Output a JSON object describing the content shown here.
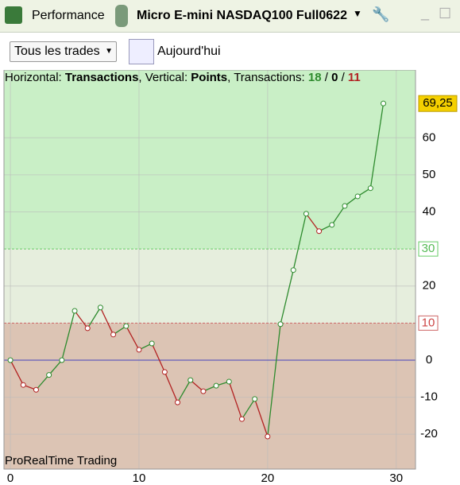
{
  "toolbar": {
    "left_label": "Performance",
    "instrument": "Micro E-mini NASDAQ100 Full0622"
  },
  "filters": {
    "trades": "Tous les trades",
    "date": "Aujourd'hui"
  },
  "info": {
    "h_label": "Horizontal:",
    "h_value": "Transactions",
    "v_label": ", Vertical:",
    "v_value": "Points",
    "t_label": ", Transactions:",
    "wins": 18,
    "separator": "/",
    "neutral": 0,
    "losses": 11
  },
  "chart_data": {
    "type": "line",
    "watermark": "ProRealTime Trading",
    "x": [
      0,
      1,
      2,
      3,
      4,
      5,
      6,
      7,
      8,
      9,
      10,
      11,
      12,
      13,
      14,
      15,
      16,
      17,
      18,
      19,
      20,
      21,
      22,
      23,
      24,
      25,
      26,
      27,
      28,
      29
    ],
    "series": [
      {
        "name": "Points",
        "up_color": "#2e8b2e",
        "down_color": "#b22222",
        "values": [
          0,
          -6.7,
          -8,
          -4,
          0,
          13.3,
          8.6,
          14.2,
          6.9,
          9.2,
          2.8,
          4.5,
          -3.2,
          -11.4,
          -5.4,
          -8.4,
          -6.9,
          -5.8,
          -15.9,
          -10.5,
          -20.6,
          9.7,
          24.3,
          39.5,
          34.8,
          36.5,
          41.6,
          44.2,
          46.4,
          69.25
        ],
        "value_labels": [
          null,
          null,
          null,
          null,
          null,
          null,
          null,
          null,
          null,
          null,
          null,
          null,
          null,
          null,
          null,
          null,
          null,
          null,
          null,
          null,
          null,
          null,
          null,
          null,
          null,
          null,
          null,
          null,
          null,
          "69,25"
        ]
      }
    ],
    "xlim": [
      -0.5,
      31.5
    ],
    "ylim": [
      -29.4,
      78.3
    ],
    "xticks": [
      0,
      10,
      20,
      30
    ],
    "yticks": [
      -20,
      -10,
      0,
      20,
      40,
      50,
      60
    ],
    "upper_threshold": 30,
    "lower_threshold": 10,
    "grid": true
  }
}
